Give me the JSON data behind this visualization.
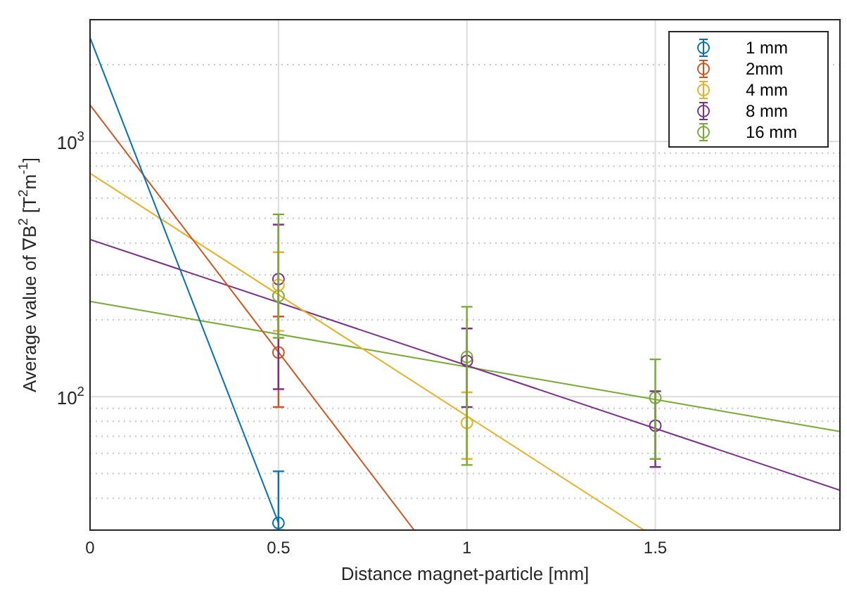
{
  "chart_data": {
    "type": "scatter",
    "xlabel": "Distance magnet-particle [mm]",
    "ylabel": "Average value of ∇B$^{2}$ [T$^{2}$m$^{-1}$]",
    "x": [
      0.5,
      1,
      1.5
    ],
    "series": [
      {
        "name": "1 mm",
        "type": "scatter",
        "color": "#0072bd",
        "values": [
          32,
          null,
          null
        ],
        "errors": [
          [
            30,
            51
          ],
          null,
          null
        ]
      },
      {
        "name": "2mm",
        "type": "scatter",
        "color": "#d95319",
        "values": [
          149,
          null,
          null
        ],
        "errors": [
          [
            91,
            206
          ],
          null,
          null
        ]
      },
      {
        "name": "4 mm",
        "type": "scatter",
        "color": "#edb120",
        "values": [
          274,
          79,
          null
        ],
        "errors": [
          [
            181,
            368
          ],
          [
            57,
            104
          ],
          null
        ]
      },
      {
        "name": "8 mm",
        "type": "scatter",
        "color": "#7e2f8e",
        "values": [
          289,
          138,
          77
        ],
        "errors": [
          [
            107,
            472
          ],
          [
            91,
            185
          ],
          [
            53,
            105
          ]
        ]
      },
      {
        "name": "16 mm",
        "type": "scatter",
        "color": "#77ac30",
        "values": [
          248,
          143,
          99
        ],
        "errors": [
          [
            170,
            518
          ],
          [
            54,
            225
          ],
          [
            57,
            140
          ]
        ]
      },
      {
        "type": "line",
        "marker": "none",
        "color": "#0072bd",
        "x": [
          0,
          0.5
        ],
        "values": [
          2550,
          32
        ]
      },
      {
        "type": "line",
        "marker": "none",
        "color": "#d95319",
        "x": [
          0,
          0.86
        ],
        "values": [
          1390,
          30
        ]
      },
      {
        "type": "line",
        "marker": "none",
        "color": "#edb120",
        "x": [
          0,
          1.47
        ],
        "values": [
          750,
          30
        ]
      },
      {
        "type": "line",
        "marker": "none",
        "color": "#7e2f8e",
        "x": [
          0,
          1.99
        ],
        "values": [
          413,
          43
        ]
      },
      {
        "type": "line",
        "marker": "none",
        "color": "#77ac30",
        "x": [
          0,
          1.99
        ],
        "values": [
          236,
          73
        ]
      }
    ],
    "xlim": [
      0,
      1.99
    ],
    "xticks": [
      0,
      0.5,
      1,
      1.5
    ],
    "ylim": [
      30,
      3000
    ],
    "yticks": [
      {
        "value": 40,
        "label": null
      },
      {
        "value": 50,
        "label": null
      },
      {
        "value": 60,
        "label": null
      },
      {
        "value": 70,
        "label": null
      },
      {
        "value": 80,
        "label": null
      },
      {
        "value": 90,
        "label": null
      },
      {
        "value": 100,
        "label": "10$^{2}$"
      },
      {
        "value": 200,
        "label": null
      },
      {
        "value": 300,
        "label": null
      },
      {
        "value": 400,
        "label": null
      },
      {
        "value": 500,
        "label": null
      },
      {
        "value": 600,
        "label": null
      },
      {
        "value": 700,
        "label": null
      },
      {
        "value": 800,
        "label": null
      },
      {
        "value": 900,
        "label": null
      },
      {
        "value": 1000,
        "label": "10$^{3}$"
      },
      {
        "value": 2000,
        "label": null
      }
    ],
    "log": "y",
    "grid": true,
    "legend": "top right",
    "marker": "circle"
  }
}
